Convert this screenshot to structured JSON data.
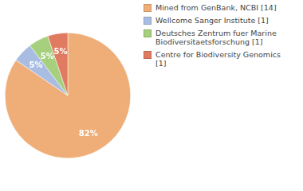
{
  "chart_data": {
    "type": "pie",
    "categories": [
      "Mined from GenBank, NCBI [14]",
      "Wellcome Sanger Institute [1]",
      "Deutsches Zentrum fuer Marine Biodiversitaetsforschung [1]",
      "Centre for Biodiversity Genomics [1]"
    ],
    "values": [
      82,
      5,
      5,
      5
    ],
    "value_labels": [
      "82%",
      "5%",
      "5%",
      "5%"
    ],
    "colors": [
      "#efae78",
      "#a9bde3",
      "#a6cf7e",
      "#e07b62"
    ],
    "legend": "upper right",
    "data_labels": true
  }
}
